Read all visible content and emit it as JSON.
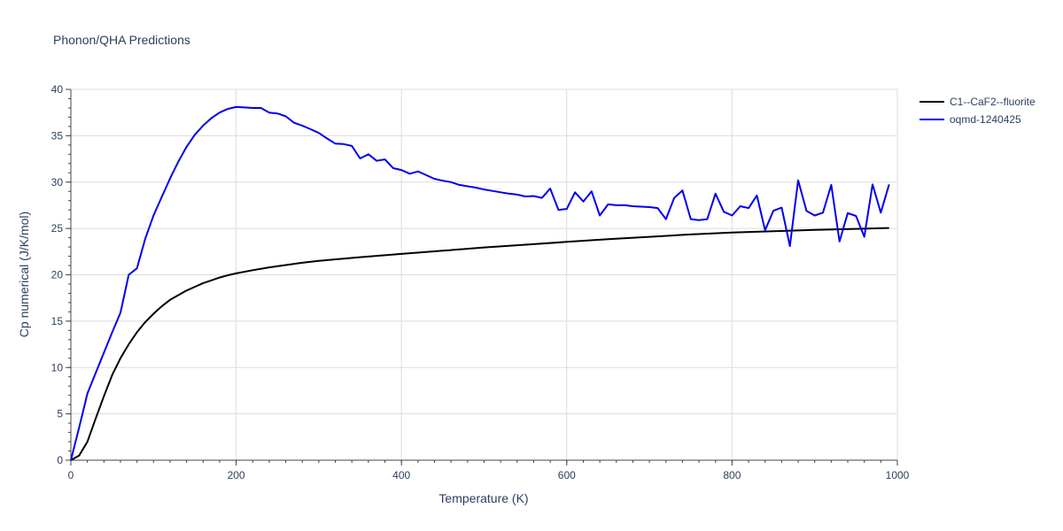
{
  "chart_data": {
    "type": "line",
    "title": "Phonon/QHA Predictions",
    "xlabel": "Temperature (K)",
    "ylabel": "Cp numerical (J/K/mol)",
    "xlim": [
      0,
      1000
    ],
    "ylim": [
      0,
      40
    ],
    "x_ticks": [
      0,
      200,
      400,
      600,
      800,
      1000
    ],
    "y_ticks": [
      0,
      5,
      10,
      15,
      20,
      25,
      30,
      35,
      40
    ],
    "grid": true,
    "legend_position": "top-right",
    "series": [
      {
        "name": "C1--CaF2--fluorite",
        "color": "#000000",
        "x": [
          0,
          10,
          20,
          30,
          40,
          50,
          60,
          70,
          80,
          90,
          100,
          110,
          120,
          130,
          140,
          150,
          160,
          170,
          180,
          190,
          200,
          220,
          240,
          260,
          280,
          300,
          350,
          400,
          450,
          500,
          550,
          600,
          650,
          700,
          750,
          800,
          850,
          900,
          950,
          990
        ],
        "y": [
          0,
          0.5,
          2.0,
          4.5,
          6.9,
          9.2,
          11.0,
          12.5,
          13.8,
          14.9,
          15.8,
          16.6,
          17.3,
          17.8,
          18.3,
          18.7,
          19.1,
          19.4,
          19.7,
          19.95,
          20.15,
          20.5,
          20.8,
          21.05,
          21.3,
          21.5,
          21.9,
          22.25,
          22.6,
          22.95,
          23.25,
          23.55,
          23.85,
          24.1,
          24.35,
          24.55,
          24.7,
          24.85,
          24.95,
          25.05
        ]
      },
      {
        "name": "oqmd-1240425",
        "color": "#0000ee",
        "x": [
          0,
          10,
          20,
          30,
          40,
          50,
          60,
          70,
          80,
          90,
          100,
          110,
          120,
          130,
          140,
          150,
          160,
          170,
          180,
          190,
          200,
          210,
          220,
          230,
          240,
          250,
          260,
          270,
          280,
          290,
          300,
          310,
          320,
          330,
          340,
          350,
          360,
          370,
          380,
          390,
          400,
          410,
          420,
          430,
          440,
          450,
          460,
          470,
          480,
          490,
          500,
          510,
          520,
          530,
          540,
          550,
          560,
          570,
          580,
          590,
          600,
          610,
          620,
          630,
          640,
          650,
          660,
          670,
          680,
          690,
          700,
          710,
          720,
          730,
          740,
          750,
          760,
          770,
          780,
          790,
          800,
          810,
          820,
          830,
          840,
          850,
          860,
          870,
          880,
          890,
          900,
          910,
          920,
          930,
          940,
          950,
          960,
          970,
          980,
          990
        ],
        "y": [
          0,
          3.5,
          7.2,
          9.4,
          11.6,
          13.8,
          15.9,
          20.0,
          20.7,
          23.9,
          26.4,
          28.4,
          30.4,
          32.2,
          33.8,
          35.1,
          36.1,
          36.9,
          37.5,
          37.9,
          38.1,
          38.05,
          38.0,
          38.0,
          37.5,
          37.4,
          37.1,
          36.4,
          36.1,
          35.7,
          35.3,
          34.7,
          34.15,
          34.1,
          33.9,
          32.55,
          33.0,
          32.3,
          32.45,
          31.5,
          31.3,
          30.9,
          31.15,
          30.75,
          30.35,
          30.15,
          30.0,
          29.7,
          29.55,
          29.4,
          29.2,
          29.05,
          28.9,
          28.75,
          28.65,
          28.45,
          28.5,
          28.3,
          29.3,
          27.0,
          27.1,
          28.9,
          27.9,
          29.0,
          26.4,
          27.6,
          27.5,
          27.5,
          27.4,
          27.35,
          27.3,
          27.2,
          26.0,
          28.3,
          29.1,
          26.0,
          25.9,
          26.0,
          28.75,
          26.8,
          26.4,
          27.4,
          27.2,
          28.55,
          24.8,
          26.9,
          27.25,
          23.1,
          30.2,
          26.9,
          26.4,
          26.7,
          29.7,
          23.6,
          26.65,
          26.35,
          24.1,
          29.75,
          26.7,
          29.75
        ]
      }
    ]
  }
}
